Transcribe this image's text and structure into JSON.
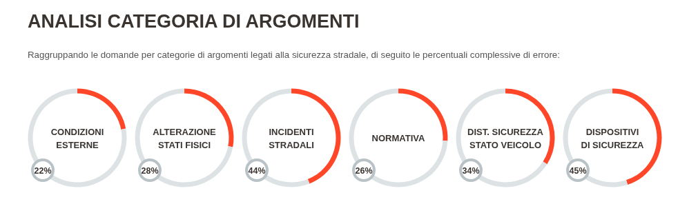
{
  "chart_data": [
    {
      "type": "other",
      "title": "ANALISI CATEGORIA DI ARGOMENTI",
      "subtitle": "Raggruppando le domande per categorie di argomenti legati alla sicurezza stradale, di seguito le percentuali complessive di errore:"
    },
    {
      "type": "donut",
      "title": "CONDIZIONI\nESTERNE",
      "categories": [
        null,
        null
      ],
      "values": [
        22,
        78
      ],
      "colors": [
        "#ff4628",
        "#dde3e5"
      ],
      "annotations": [
        "22%"
      ]
    },
    {
      "type": "donut",
      "title": "ALTERAZIONE\nSTATI FISICI",
      "categories": [
        null,
        null
      ],
      "values": [
        28,
        72
      ],
      "colors": [
        "#ff4628",
        "#dde3e5"
      ],
      "annotations": [
        "28%"
      ]
    },
    {
      "type": "donut",
      "title": "INCIDENTI\nSTRADALI",
      "categories": [
        null,
        null
      ],
      "values": [
        44,
        56
      ],
      "colors": [
        "#ff4628",
        "#dde3e5"
      ],
      "annotations": [
        "44%"
      ]
    },
    {
      "type": "donut",
      "title": "NORMATIVA",
      "categories": [
        null,
        null
      ],
      "values": [
        26,
        74
      ],
      "colors": [
        "#ff4628",
        "#dde3e5"
      ],
      "annotations": [
        "26%"
      ]
    },
    {
      "type": "donut",
      "title": "DIST. SICUREZZA\nSTATO VEICOLO",
      "categories": [
        null,
        null
      ],
      "values": [
        34,
        66
      ],
      "colors": [
        "#ff4628",
        "#dde3e5"
      ],
      "annotations": [
        "34%"
      ]
    },
    {
      "type": "donut",
      "title": "DISPOSITIVI\nDI SICUREZZA",
      "categories": [
        null,
        null
      ],
      "values": [
        45,
        55
      ],
      "colors": [
        "#ff4628",
        "#dde3e5"
      ],
      "annotations": [
        "45%"
      ]
    }
  ]
}
